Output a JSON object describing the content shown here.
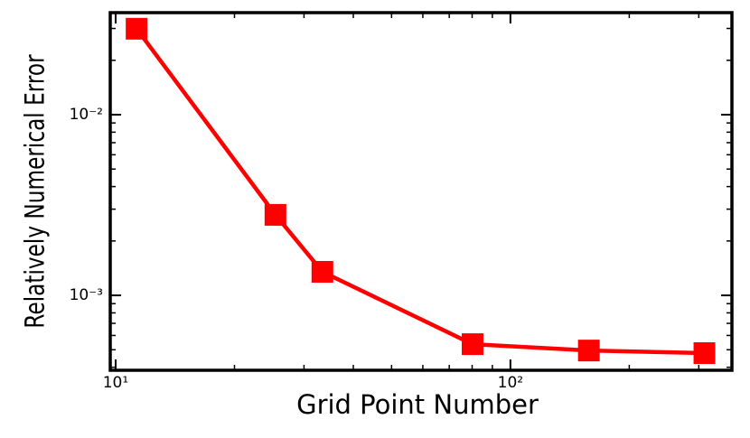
{
  "chart_data": {
    "type": "line",
    "xlabel": "Grid Point Number",
    "ylabel": "Relatively Numerical Error",
    "x": [
      11.3,
      25.4,
      33.4,
      80.2,
      158,
      310
    ],
    "series": [
      {
        "color": "#ff0000",
        "values": [
          0.0299,
          0.00279,
          0.00135,
          0.000537,
          0.000495,
          0.000479
        ]
      }
    ],
    "xscale": "log",
    "yscale": "log",
    "xlim": [
      9.69,
      364
    ],
    "ylim": [
      0.000385,
      0.0367
    ],
    "xticks": [
      {
        "value": 10,
        "label": "10¹"
      },
      {
        "value": 100,
        "label": "10²"
      }
    ],
    "yticks": [
      {
        "value": 0.001,
        "label": "10⁻³"
      },
      {
        "value": 0.01,
        "label": "10⁻²"
      }
    ],
    "grid": false
  }
}
